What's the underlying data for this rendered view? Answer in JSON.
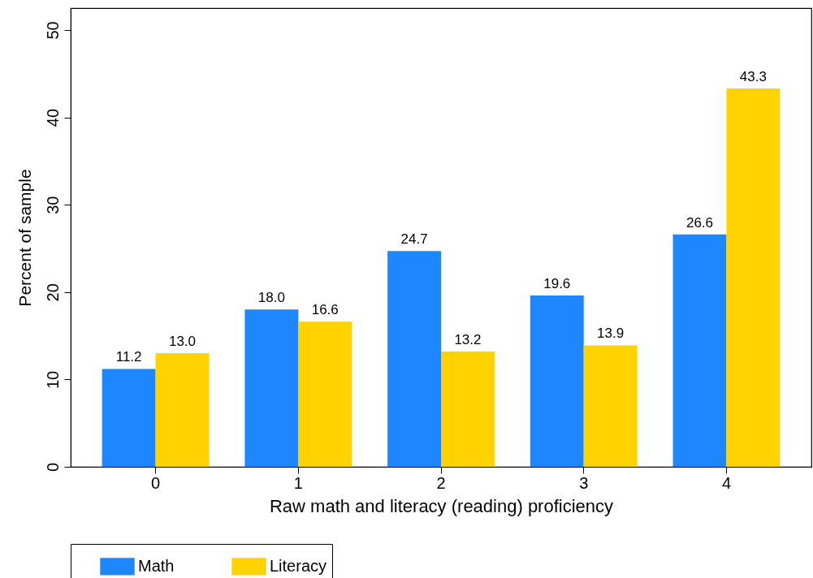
{
  "chart_data": {
    "type": "bar",
    "xlabel": "Raw math and literacy (reading) proficiency",
    "ylabel": "Percent of sample",
    "categories": [
      "0",
      "1",
      "2",
      "3",
      "4"
    ],
    "series": [
      {
        "name": "Math",
        "color": "#1e87ff",
        "values": [
          11.2,
          18.0,
          24.7,
          19.6,
          26.6
        ],
        "value_labels": [
          "11.2",
          "18.0",
          "24.7",
          "19.6",
          "26.6"
        ]
      },
      {
        "name": "Literacy",
        "color": "#ffd200",
        "values": [
          13.0,
          16.6,
          13.2,
          13.9,
          43.3
        ],
        "value_labels": [
          "13.0",
          "16.6",
          "13.2",
          "13.9",
          "43.3"
        ]
      }
    ],
    "ylim": [
      0,
      52.5
    ],
    "yticks": [
      0,
      10,
      20,
      30,
      40,
      50
    ],
    "grid": false,
    "legend": "bottom"
  }
}
